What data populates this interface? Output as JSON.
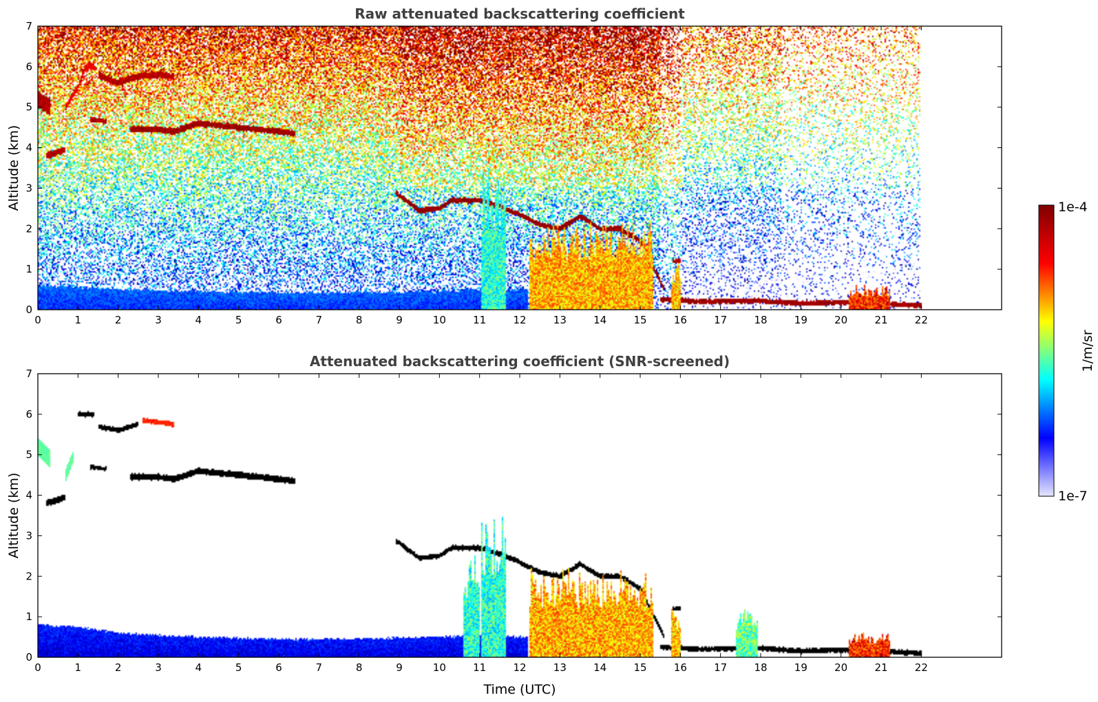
{
  "chart_data": [
    {
      "type": "heatmap",
      "title": "Raw attenuated backscattering coefficient",
      "xlabel": "",
      "ylabel": "Altitude (km)",
      "xlim": [
        0,
        24
      ],
      "ylim": [
        0,
        7
      ],
      "x_ticks": [
        "0",
        "1",
        "2",
        "3",
        "4",
        "5",
        "6",
        "7",
        "8",
        "9",
        "10",
        "11",
        "12",
        "13",
        "14",
        "15",
        "16",
        "17",
        "18",
        "19",
        "20",
        "21",
        "22"
      ],
      "y_ticks": [
        "0",
        "1",
        "2",
        "3",
        "4",
        "5",
        "6",
        "7"
      ],
      "data_end_time": 22,
      "noise_background": true,
      "features": [
        {
          "kind": "boundary_layer",
          "points": [
            [
              0,
              0.6
            ],
            [
              2,
              0.5
            ],
            [
              4,
              0.45
            ],
            [
              6,
              0.42
            ],
            [
              8,
              0.42
            ],
            [
              10,
              0.45
            ],
            [
              11,
              0.5
            ],
            [
              12.2,
              0.5
            ]
          ],
          "level": 0.22
        },
        {
          "kind": "cloud_layer",
          "points": [
            [
              0,
              5.2
            ],
            [
              0.3,
              5.0
            ]
          ],
          "thickness": 0.4,
          "level": 0.95
        },
        {
          "kind": "cloud_layer",
          "points": [
            [
              0.2,
              3.8
            ],
            [
              0.7,
              3.95
            ]
          ],
          "thickness": 0.15,
          "level": 0.95
        },
        {
          "kind": "cloud_layer",
          "points": [
            [
              0.7,
              5.0
            ],
            [
              1.0,
              5.5
            ],
            [
              1.2,
              6.0
            ],
            [
              1.4,
              6.0
            ]
          ],
          "thickness": 0.15,
          "level": 0.9
        },
        {
          "kind": "cloud_layer",
          "points": [
            [
              1.5,
              5.8
            ],
            [
              2.0,
              5.6
            ],
            [
              2.5,
              5.75
            ],
            [
              3.0,
              5.8
            ],
            [
              3.4,
              5.75
            ]
          ],
          "thickness": 0.15,
          "level": 0.95
        },
        {
          "kind": "cloud_layer",
          "points": [
            [
              1.3,
              4.7
            ],
            [
              1.7,
              4.65
            ]
          ],
          "thickness": 0.12,
          "level": 0.95
        },
        {
          "kind": "cloud_layer",
          "points": [
            [
              2.3,
              4.45
            ],
            [
              3.0,
              4.45
            ],
            [
              3.4,
              4.4
            ],
            [
              4.0,
              4.6
            ],
            [
              5.0,
              4.5
            ],
            [
              6.0,
              4.4
            ],
            [
              6.4,
              4.35
            ]
          ],
          "thickness": 0.15,
          "level": 0.97
        },
        {
          "kind": "cloud_layer",
          "points": [
            [
              8.9,
              2.9
            ],
            [
              9.5,
              2.45
            ],
            [
              10.0,
              2.5
            ],
            [
              10.3,
              2.7
            ],
            [
              11.0,
              2.7
            ],
            [
              11.5,
              2.55
            ],
            [
              12.0,
              2.35
            ],
            [
              12.5,
              2.1
            ],
            [
              13.0,
              2.0
            ],
            [
              13.5,
              2.3
            ],
            [
              14.0,
              2.0
            ],
            [
              14.5,
              2.0
            ],
            [
              15.0,
              1.7
            ],
            [
              15.3,
              1.1
            ],
            [
              15.6,
              0.5
            ]
          ],
          "thickness": 0.12,
          "level": 0.98
        },
        {
          "kind": "cloud_layer",
          "points": [
            [
              15.8,
              1.2
            ],
            [
              16.0,
              1.2
            ]
          ],
          "thickness": 0.1,
          "level": 0.95
        },
        {
          "kind": "cloud_layer",
          "points": [
            [
              15.5,
              0.25
            ],
            [
              16.5,
              0.2
            ],
            [
              18.0,
              0.22
            ],
            [
              19.0,
              0.15
            ],
            [
              20.0,
              0.18
            ],
            [
              21.0,
              0.15
            ],
            [
              22.0,
              0.1
            ]
          ],
          "thickness": 0.12,
          "level": 0.97
        },
        {
          "kind": "column",
          "x0": 11.05,
          "x1": 11.65,
          "ytop": 3.5,
          "level": 0.45
        },
        {
          "kind": "column",
          "x0": 12.25,
          "x1": 15.3,
          "ytop": 2.2,
          "level": 0.72
        },
        {
          "kind": "column",
          "x0": 15.8,
          "x1": 16.0,
          "ytop": 1.2,
          "level": 0.7
        },
        {
          "kind": "column",
          "x0": 20.2,
          "x1": 21.2,
          "ytop": 0.6,
          "level": 0.85
        }
      ]
    },
    {
      "type": "heatmap",
      "title": "Attenuated backscattering coefficient (SNR-screened)",
      "xlabel": "Time (UTC)",
      "ylabel": "Altitude (km)",
      "xlim": [
        0,
        24
      ],
      "ylim": [
        0,
        7
      ],
      "x_ticks": [
        "0",
        "1",
        "2",
        "3",
        "4",
        "5",
        "6",
        "7",
        "8",
        "9",
        "10",
        "11",
        "12",
        "13",
        "14",
        "15",
        "16",
        "17",
        "18",
        "19",
        "20",
        "21",
        "22"
      ],
      "y_ticks": [
        "0",
        "1",
        "2",
        "3",
        "4",
        "5",
        "6",
        "7"
      ],
      "data_end_time": 22,
      "noise_background": false,
      "features": [
        {
          "kind": "boundary_layer",
          "points": [
            [
              0,
              0.8
            ],
            [
              1,
              0.75
            ],
            [
              2,
              0.6
            ],
            [
              4,
              0.5
            ],
            [
              6,
              0.45
            ],
            [
              8,
              0.45
            ],
            [
              10,
              0.5
            ],
            [
              11,
              0.55
            ],
            [
              12.2,
              0.5
            ]
          ],
          "level": 0.15
        },
        {
          "kind": "cloud_layer",
          "points": [
            [
              0,
              5.2
            ],
            [
              0.3,
              4.9
            ]
          ],
          "thickness": 0.45,
          "level": 0.5
        },
        {
          "kind": "cloud_layer",
          "points": [
            [
              0.2,
              3.8
            ],
            [
              0.7,
              3.95
            ]
          ],
          "thickness": 0.15,
          "level": 1.0
        },
        {
          "kind": "cloud_layer",
          "points": [
            [
              0.7,
              4.5
            ],
            [
              0.9,
              5.0
            ]
          ],
          "thickness": 0.3,
          "level": 0.5
        },
        {
          "kind": "cloud_layer",
          "points": [
            [
              1.0,
              6.0
            ],
            [
              1.4,
              6.0
            ]
          ],
          "thickness": 0.12,
          "level": 1.0
        },
        {
          "kind": "cloud_layer",
          "points": [
            [
              1.5,
              5.7
            ],
            [
              2.0,
              5.6
            ],
            [
              2.5,
              5.75
            ]
          ],
          "thickness": 0.12,
          "level": 1.0
        },
        {
          "kind": "cloud_layer",
          "points": [
            [
              2.6,
              5.85
            ],
            [
              3.4,
              5.75
            ]
          ],
          "thickness": 0.12,
          "level": 0.85
        },
        {
          "kind": "cloud_layer",
          "points": [
            [
              1.3,
              4.7
            ],
            [
              1.7,
              4.65
            ]
          ],
          "thickness": 0.1,
          "level": 1.0
        },
        {
          "kind": "cloud_layer",
          "points": [
            [
              2.3,
              4.45
            ],
            [
              3.0,
              4.45
            ],
            [
              3.4,
              4.4
            ],
            [
              4.0,
              4.6
            ],
            [
              5.0,
              4.5
            ],
            [
              6.0,
              4.4
            ],
            [
              6.4,
              4.35
            ]
          ],
          "thickness": 0.15,
          "level": 1.0
        },
        {
          "kind": "cloud_layer",
          "points": [
            [
              8.9,
              2.9
            ],
            [
              9.5,
              2.45
            ],
            [
              10.0,
              2.5
            ],
            [
              10.3,
              2.7
            ],
            [
              11.0,
              2.7
            ],
            [
              11.5,
              2.55
            ],
            [
              12.0,
              2.35
            ],
            [
              12.5,
              2.1
            ],
            [
              13.0,
              2.0
            ],
            [
              13.5,
              2.3
            ],
            [
              14.0,
              2.0
            ],
            [
              14.5,
              2.0
            ],
            [
              15.0,
              1.7
            ],
            [
              15.3,
              1.1
            ],
            [
              15.6,
              0.5
            ]
          ],
          "thickness": 0.12,
          "level": 1.0
        },
        {
          "kind": "cloud_layer",
          "points": [
            [
              15.8,
              1.2
            ],
            [
              16.0,
              1.2
            ]
          ],
          "thickness": 0.1,
          "level": 1.0
        },
        {
          "kind": "cloud_layer",
          "points": [
            [
              15.5,
              0.25
            ],
            [
              16.5,
              0.2
            ],
            [
              18.0,
              0.22
            ],
            [
              19.0,
              0.15
            ],
            [
              20.0,
              0.18
            ],
            [
              21.0,
              0.15
            ],
            [
              22.0,
              0.1
            ]
          ],
          "thickness": 0.12,
          "level": 1.0
        },
        {
          "kind": "column",
          "x0": 10.6,
          "x1": 11.0,
          "ytop": 2.6,
          "level": 0.45
        },
        {
          "kind": "column",
          "x0": 11.05,
          "x1": 11.65,
          "ytop": 3.5,
          "level": 0.45
        },
        {
          "kind": "column",
          "x0": 12.25,
          "x1": 15.3,
          "ytop": 2.2,
          "level": 0.72
        },
        {
          "kind": "column",
          "x0": 15.8,
          "x1": 16.0,
          "ytop": 1.2,
          "level": 0.7
        },
        {
          "kind": "column",
          "x0": 17.4,
          "x1": 17.9,
          "ytop": 1.2,
          "level": 0.5
        },
        {
          "kind": "column",
          "x0": 20.2,
          "x1": 21.2,
          "ytop": 0.6,
          "level": 0.85
        }
      ]
    }
  ],
  "colorbar": {
    "min_label": "1e-7",
    "max_label": "1e-4",
    "label": "1/m/sr",
    "scale": "log",
    "colors": [
      "#7f0000",
      "#ff0000",
      "#ffff00",
      "#00ffff",
      "#0000ff",
      "#e6e6ff"
    ]
  }
}
